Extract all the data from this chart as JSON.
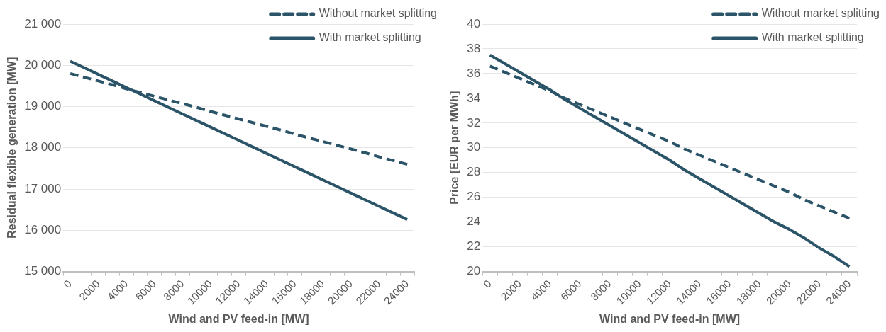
{
  "chart_data": [
    {
      "type": "line",
      "xlabel": "Wind and PV feed-in [MW]",
      "ylabel": "Residual flexible generation [MW]",
      "categories": [
        "0",
        null,
        "2000",
        null,
        "4000",
        null,
        "6000",
        null,
        "8000",
        null,
        "10000",
        null,
        "12000",
        null,
        "14000",
        null,
        "16000",
        null,
        "18000",
        null,
        "20000",
        null,
        "22000",
        null,
        "24000"
      ],
      "series": [
        {
          "name": "Without market splitting",
          "color": "#2b5468",
          "line_style": "dashed",
          "values": [
            19800,
            19710,
            19620,
            19530,
            19430,
            19340,
            19250,
            19160,
            19070,
            18980,
            18880,
            18790,
            18700,
            18610,
            18520,
            18430,
            18330,
            18240,
            18150,
            18060,
            17970,
            17880,
            17780,
            17690,
            17600
          ]
        },
        {
          "name": "With market splitting",
          "color": "#2b5468",
          "line_style": "solid",
          "values": [
            20100,
            19940,
            19780,
            19620,
            19460,
            19300,
            19140,
            18980,
            18820,
            18660,
            18500,
            18340,
            18180,
            18020,
            17860,
            17700,
            17540,
            17380,
            17220,
            17060,
            16900,
            16740,
            16580,
            16420,
            16260
          ]
        }
      ],
      "ylim": [
        15000,
        21000
      ],
      "yticks": [
        {
          "value": 15000,
          "label": "15 000"
        },
        {
          "value": 16000,
          "label": "16 000"
        },
        {
          "value": 17000,
          "label": "17 000"
        },
        {
          "value": 18000,
          "label": "18 000"
        },
        {
          "value": 19000,
          "label": "19 000"
        },
        {
          "value": 20000,
          "label": "20 000"
        },
        {
          "value": 21000,
          "label": "21 000"
        }
      ],
      "grid": "y",
      "legend": "top right",
      "marker": "none"
    },
    {
      "type": "line",
      "xlabel": "Wind and PV feed-in [MW]",
      "ylabel": "Price [EUR per MWh]",
      "categories": [
        "0",
        null,
        "2000",
        null,
        "4000",
        null,
        "6000",
        null,
        "8000",
        null,
        "10000",
        null,
        "12000",
        null,
        "14000",
        null,
        "16000",
        null,
        "18000",
        null,
        "20000",
        null,
        "22000",
        null,
        "24000"
      ],
      "series": [
        {
          "name": "Without market splitting",
          "color": "#2b5468",
          "line_style": "dashed",
          "values": [
            36.6,
            36.1,
            35.6,
            35.1,
            34.6,
            34.0,
            33.5,
            33.0,
            32.5,
            32.0,
            31.5,
            31.0,
            30.5,
            29.9,
            29.4,
            28.9,
            28.4,
            27.9,
            27.4,
            26.9,
            26.4,
            25.8,
            25.3,
            24.8,
            24.3
          ]
        },
        {
          "name": "With market splitting",
          "color": "#2b5468",
          "line_style": "solid",
          "values": [
            37.5,
            36.8,
            36.1,
            35.4,
            34.7,
            33.9,
            33.2,
            32.5,
            31.8,
            31.1,
            30.4,
            29.7,
            29.0,
            28.2,
            27.5,
            26.8,
            26.1,
            25.4,
            24.7,
            24.0,
            23.4,
            22.7,
            21.9,
            21.2,
            20.4
          ]
        }
      ],
      "ylim": [
        20,
        40
      ],
      "yticks": [
        20,
        22,
        24,
        26,
        28,
        30,
        32,
        34,
        36,
        38,
        40
      ],
      "grid": "y",
      "legend": "top right",
      "marker": "none"
    }
  ]
}
